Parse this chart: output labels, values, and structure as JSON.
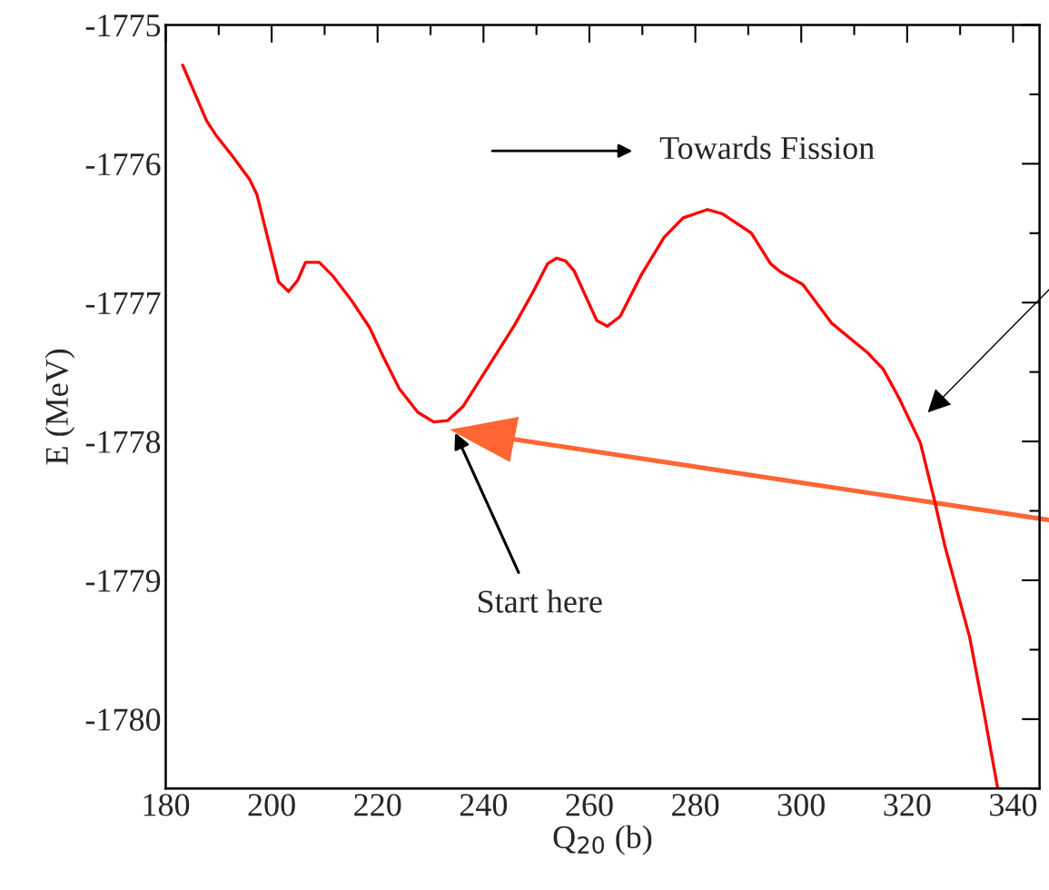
{
  "chart_data": {
    "type": "line",
    "xlabel": "Q$_{20}$ (b)",
    "ylabel": "E (MeV)",
    "xlim": [
      180,
      345
    ],
    "xticks": [
      180,
      200,
      220,
      240,
      260,
      280,
      300,
      320,
      340
    ],
    "ylim": [
      -1780.5,
      -1775
    ],
    "yticks": [
      -1780,
      -1779,
      -1778,
      -1777,
      -1776,
      -1775
    ],
    "grid": false,
    "legend": false,
    "marker": "none",
    "line_style": "solid",
    "series": [
      {
        "color": "#ff0000",
        "x": [
          183.2,
          187.7,
          189.4,
          192.9,
          195.8,
          197.2,
          198.9,
          201.3,
          203.2,
          204.9,
          206.4,
          209.0,
          211.6,
          215.0,
          218.5,
          221.2,
          224.1,
          227.6,
          230.6,
          233.2,
          236.1,
          240.1,
          245.9,
          249.4,
          252.1,
          253.8,
          255.5,
          257.1,
          261.4,
          263.4,
          265.8,
          269.8,
          274.1,
          277.7,
          282.3,
          285.1,
          290.6,
          294.2,
          296.1,
          300.3,
          305.8,
          312.5,
          315.5,
          318.5,
          322.5,
          325.2,
          327.1,
          331.8,
          334.5,
          337.1
        ],
        "values": [
          -1775.29,
          -1775.69,
          -1775.79,
          -1775.96,
          -1776.11,
          -1776.22,
          -1776.48,
          -1776.85,
          -1776.92,
          -1776.84,
          -1776.71,
          -1776.71,
          -1776.81,
          -1776.98,
          -1777.18,
          -1777.4,
          -1777.62,
          -1777.79,
          -1777.86,
          -1777.85,
          -1777.75,
          -1777.51,
          -1777.16,
          -1776.92,
          -1776.72,
          -1776.68,
          -1776.7,
          -1776.77,
          -1777.13,
          -1777.17,
          -1777.1,
          -1776.8,
          -1776.53,
          -1776.39,
          -1776.33,
          -1776.36,
          -1776.5,
          -1776.72,
          -1776.78,
          -1776.87,
          -1777.15,
          -1777.36,
          -1777.48,
          -1777.69,
          -1778.01,
          -1778.43,
          -1778.75,
          -1779.41,
          -1779.95,
          -1780.5
        ]
      }
    ],
    "annotations": [
      "Towards Fission",
      "Start here"
    ]
  }
}
